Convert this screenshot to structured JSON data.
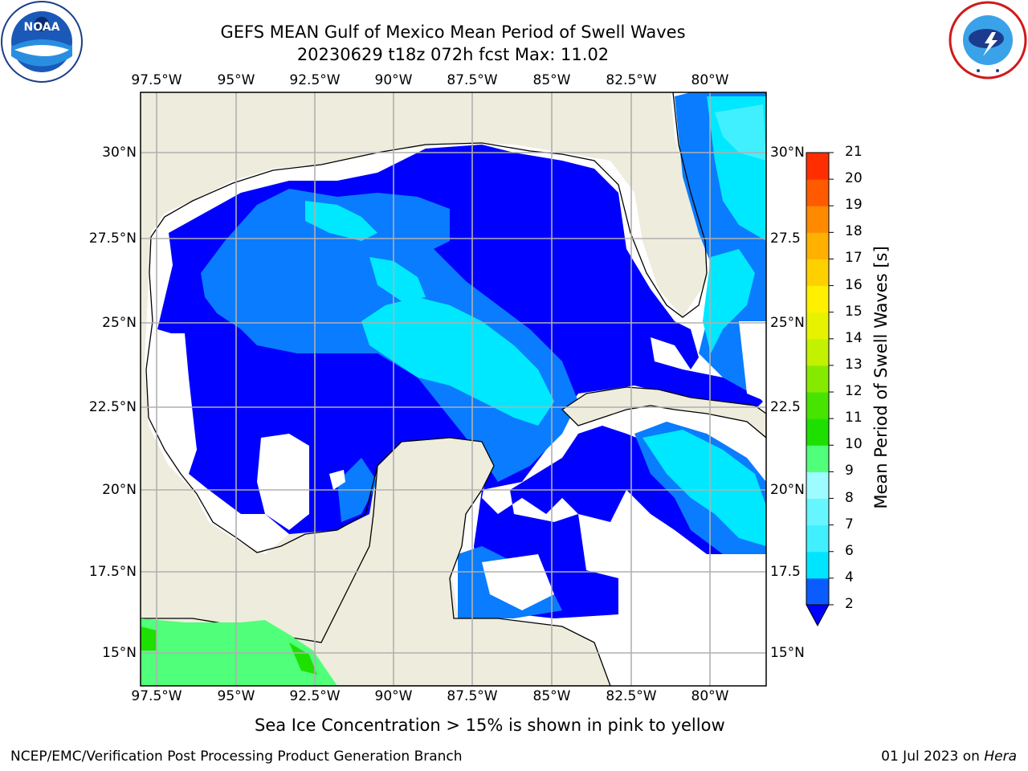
{
  "header": {
    "title_line1": "GEFS MEAN Gulf of Mexico Mean Period of Swell Waves",
    "title_line2": "20230629 t18z 072h fcst   Max: 11.02"
  },
  "logos": {
    "left": "noaa-logo",
    "right": "national-weather-service-logo"
  },
  "map": {
    "lon_labels": [
      "97.5°W",
      "95°W",
      "92.5°W",
      "90°W",
      "87.5°W",
      "85°W",
      "82.5°W",
      "80°W"
    ],
    "lat_labels_left": [
      "30°N",
      "27.5°N",
      "25°N",
      "22.5°N",
      "20°N",
      "17.5°N",
      "15°N"
    ],
    "lat_labels_right": [
      "30°N",
      "27.5",
      "25°N",
      "22.5",
      "20°N",
      "17.5",
      "15°N"
    ],
    "land_color": "#eeecdc",
    "grid_color": "#b0b0b0"
  },
  "colorbar": {
    "label": "Mean Period of Swell Waves [s]",
    "ticks": [
      "2",
      "4",
      "6",
      "7",
      "8",
      "9",
      "10",
      "11",
      "12",
      "13",
      "14",
      "15",
      "16",
      "17",
      "18",
      "19",
      "20",
      "21"
    ],
    "colors": [
      "#0a5cff",
      "#00e5ff",
      "#40f0ff",
      "#66f6ff",
      "#9cfcff",
      "#50ff7a",
      "#1ee000",
      "#46e400",
      "#86ea00",
      "#c2f200",
      "#e6f200",
      "#fff000",
      "#ffd000",
      "#ffb000",
      "#ff8a00",
      "#ff5a00",
      "#ff2e00"
    ],
    "extend_color": "#0000ff"
  },
  "footer": {
    "caption": "Sea Ice Concentration > 15% is shown in pink to yellow",
    "left": "NCEP/EMC/Verification Post Processing Product Generation Branch",
    "right_date": "01 Jul 2023 on ",
    "right_host": "Hera"
  }
}
